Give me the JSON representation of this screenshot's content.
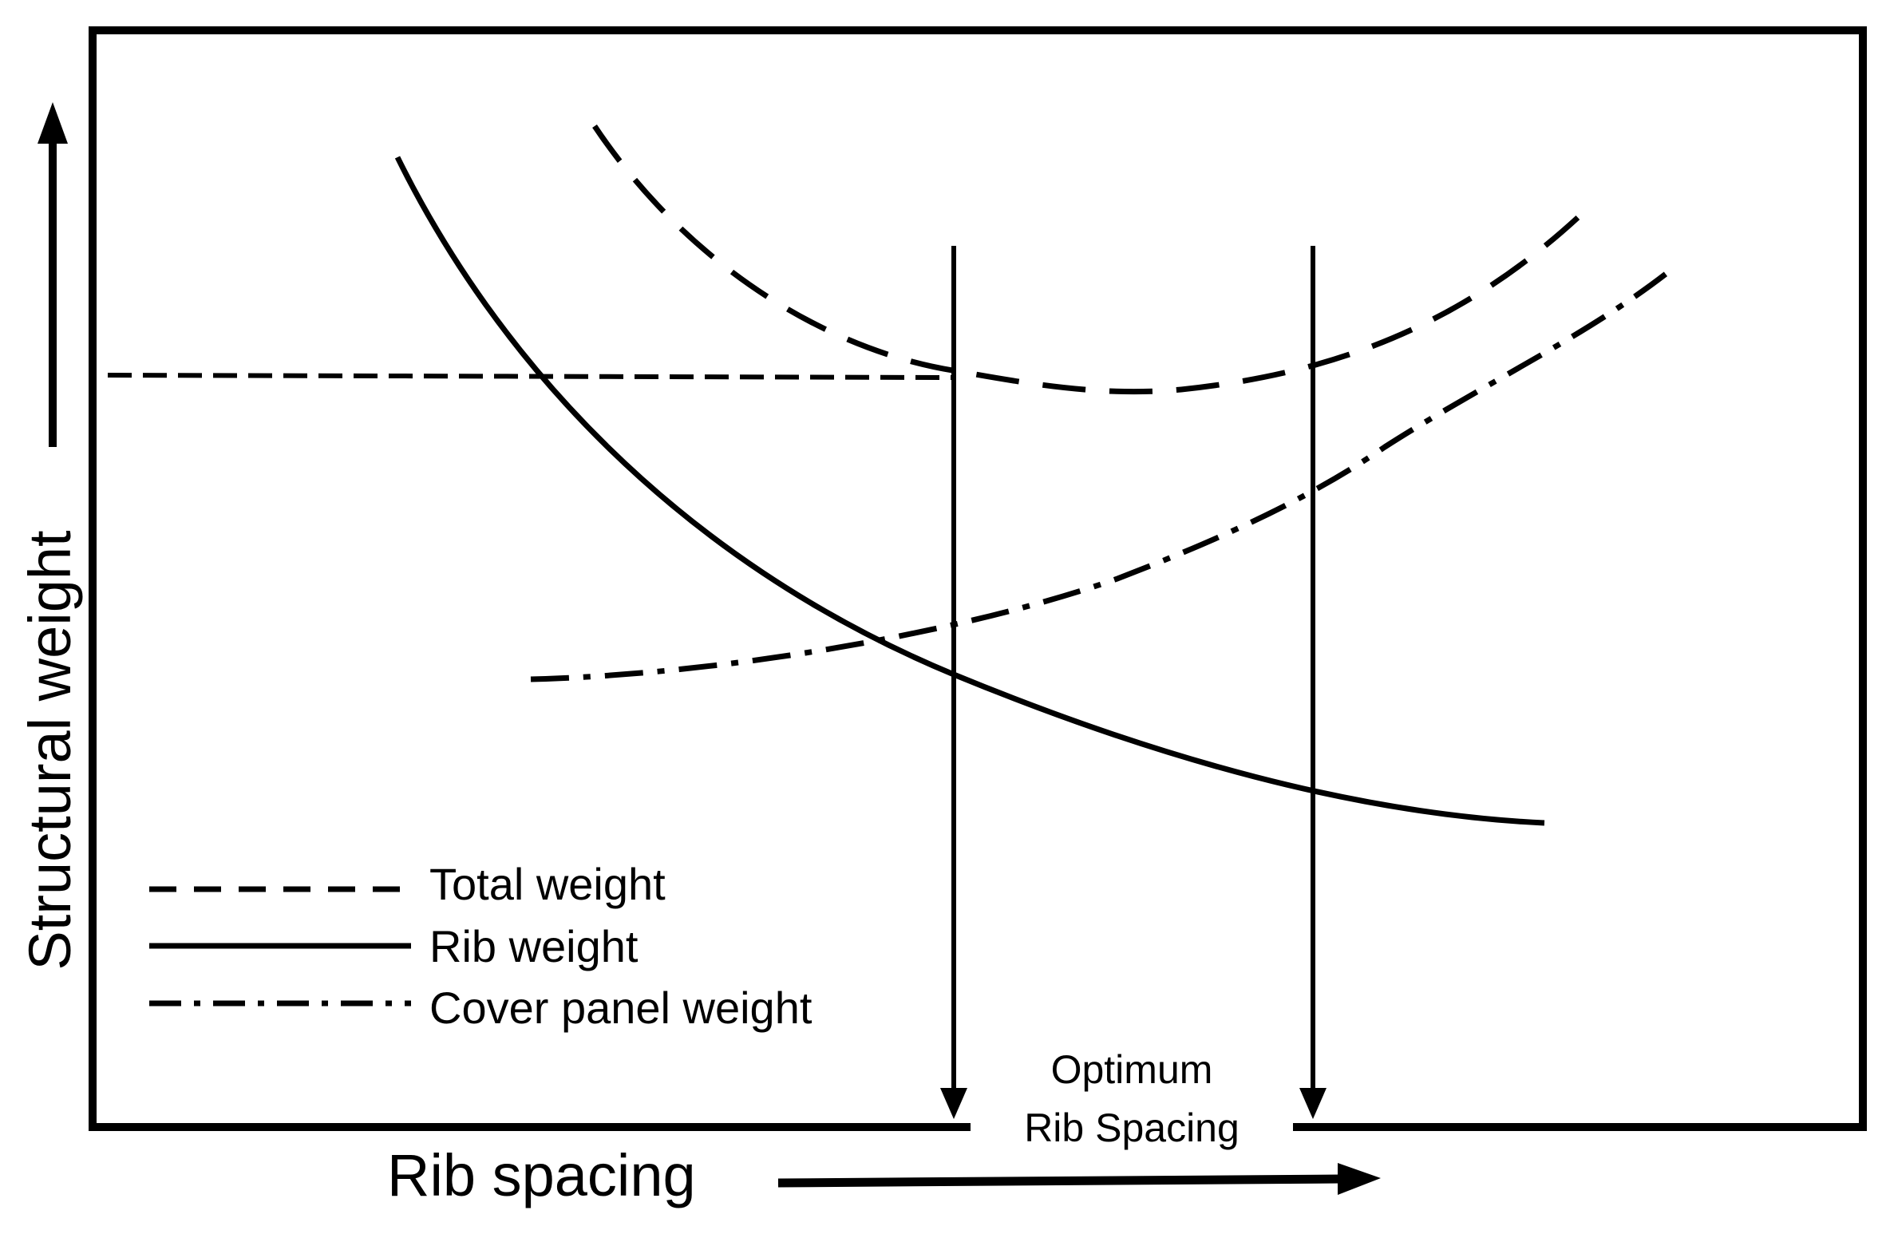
{
  "chart_data": {
    "type": "line",
    "title": "",
    "xlabel": "Rib spacing",
    "ylabel": "Structural weight",
    "axis_ticks": "none",
    "series": [
      {
        "name": "Total weight",
        "style": "dashed",
        "description": "U-shaped curve; minimum between the two optimum-spacing markers"
      },
      {
        "name": "Rib weight",
        "style": "solid",
        "description": "Decreases as rib spacing increases, flattening at large spacing"
      },
      {
        "name": "Cover panel weight",
        "style": "dash-dot",
        "description": "Increases as rib spacing increases, steepening at large spacing"
      }
    ],
    "reference_line": {
      "style": "short-dashed",
      "description": "Horizontal level of total weight at the left optimum marker"
    },
    "annotation": {
      "line1": "Optimum",
      "line2": "Rib Spacing"
    },
    "legend_position": "bottom-left"
  },
  "legend": [
    {
      "label": "Total weight",
      "style": "dashed"
    },
    {
      "label": "Rib weight",
      "style": "solid"
    },
    {
      "label": "Cover panel weight",
      "style": "dash-dot"
    }
  ],
  "colors": {
    "line": "#000000",
    "background": "#ffffff"
  }
}
